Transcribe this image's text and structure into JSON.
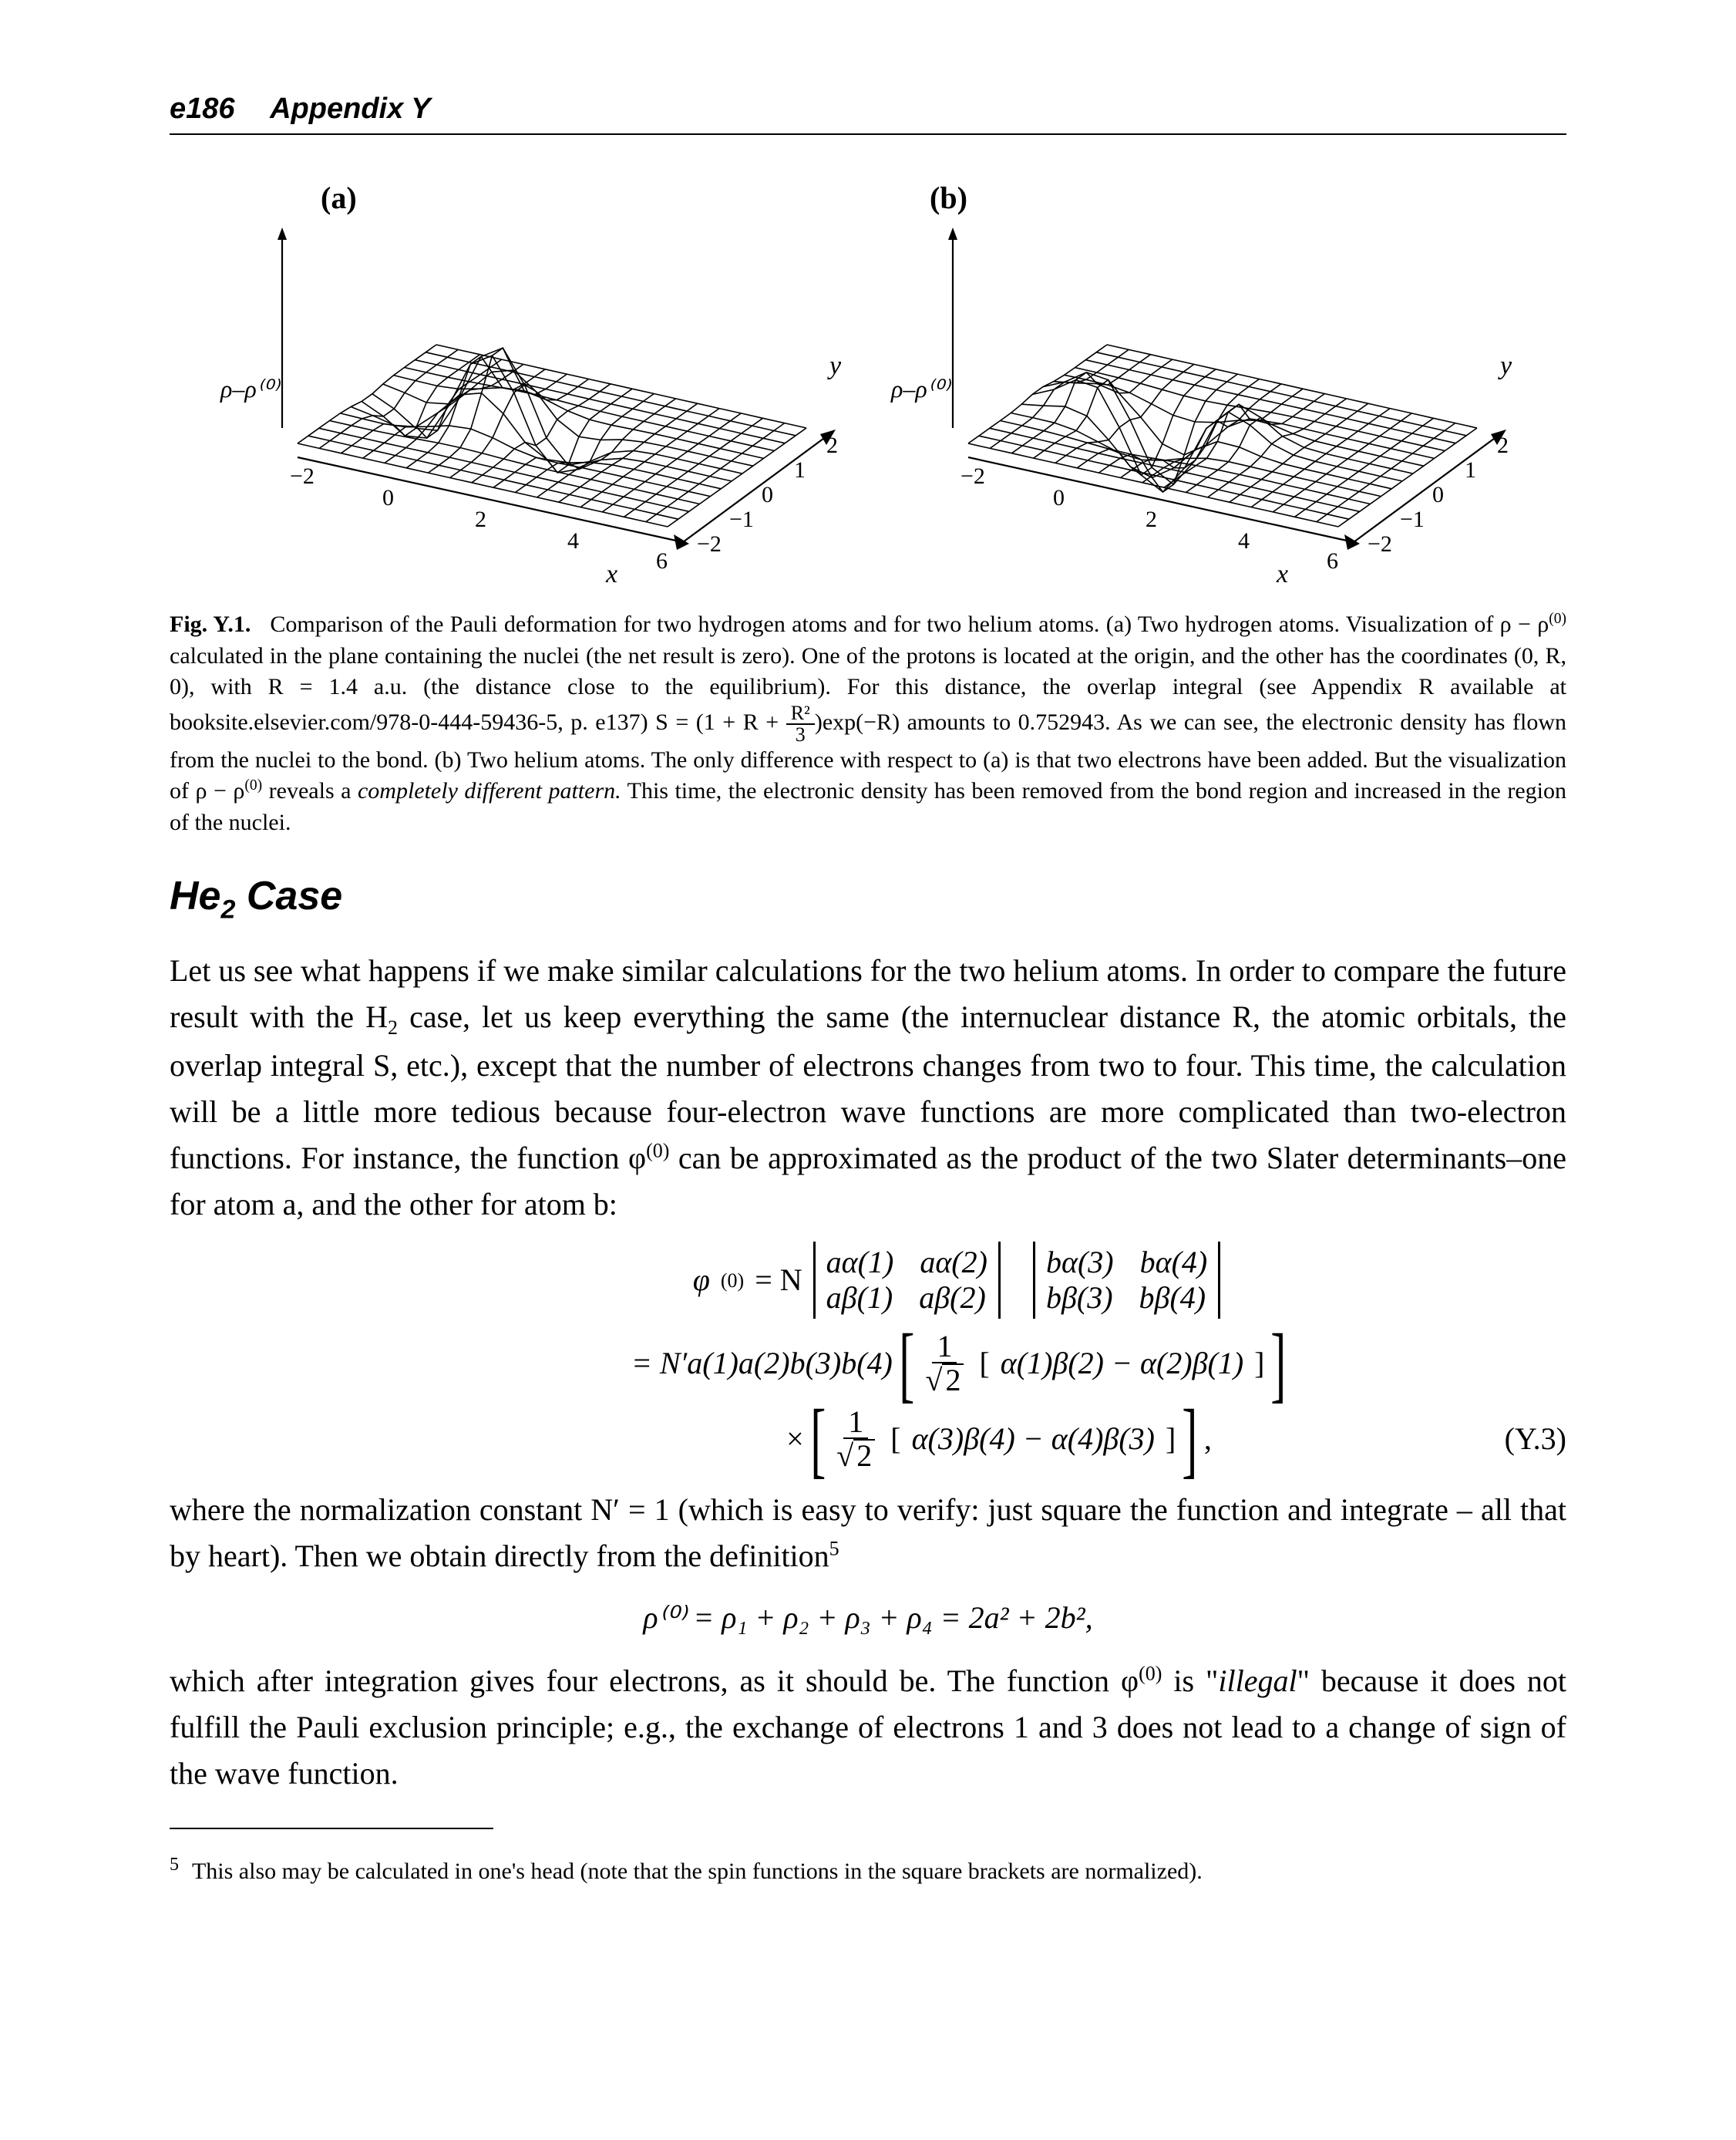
{
  "header": {
    "page_number": "e186",
    "section": "Appendix Y"
  },
  "figure": {
    "panels": {
      "a": {
        "label": "(a)",
        "z_axis_label": "ρ–ρ⁽⁰⁾",
        "x_label": "x",
        "y_label": "y",
        "x_ticks": [
          "−2",
          "0",
          "2",
          "4",
          "6"
        ],
        "y_ticks": [
          "−2",
          "−1",
          "0",
          "1",
          "2"
        ]
      },
      "b": {
        "label": "(b)",
        "z_axis_label": "ρ–ρ⁽⁰⁾",
        "x_label": "x",
        "y_label": "y",
        "x_ticks": [
          "−2",
          "0",
          "2",
          "4",
          "6"
        ],
        "y_ticks": [
          "−2",
          "−1",
          "0",
          "1",
          "2"
        ]
      }
    },
    "caption_label": "Fig. Y.1.",
    "caption_text_1": "Comparison of the Pauli deformation for two hydrogen atoms and for two helium atoms. (a) Two hydrogen atoms. Visualization of ρ − ρ",
    "caption_sup_1": "(0)",
    "caption_text_2": " calculated in the plane containing the nuclei (the net result is zero). One of the protons is located at the origin, and the other has the coordinates (0, R, 0), with R = 1.4 a.u. (the distance close to the equilibrium). For this distance, the overlap integral (see Appendix R available at  booksite.elsevier.com/978-0-444-59436-5, p. e137) S = (1 + R + ",
    "caption_frac_num": "R²",
    "caption_frac_den": "3",
    "caption_text_3": ")exp(−R) amounts to 0.752943. As we can see, the electronic density has flown from the nuclei to the bond. (b) Two helium atoms. The only difference with respect to (a) is that two electrons have been added. But the visualization of ρ − ρ",
    "caption_sup_2": "(0)",
    "caption_text_4": " reveals a ",
    "caption_emph": "completely different pattern.",
    "caption_text_5": " This time, the electronic density has been removed from the bond region and increased in the region of the nuclei."
  },
  "section_title_pre": "He",
  "section_title_sub": "2",
  "section_title_post": " Case",
  "para1_a": "Let us see what happens if we make similar calculations for the two helium atoms. In order to compare the future result with the H",
  "para1_sub": "2",
  "para1_b": " case, let us keep everything the same (the internuclear distance R, the atomic orbitals, the overlap integral S, etc.), except that the number of electrons changes from two to four. This time, the calculation will be a little more tedious because four-electron wave functions are more complicated than two-electron functions. For instance, the function φ",
  "para1_sup": "(0)",
  "para1_c": " can be approximated as the product of the two Slater determinants–one for atom a, and the other for atom b:",
  "equation": {
    "lhs": "φ",
    "lhs_sup": "(0)",
    "eq": " = N ",
    "det1": {
      "r1c1": "aα(1)",
      "r1c2": "aα(2)",
      "r2c1": "aβ(1)",
      "r2c2": "aβ(2)"
    },
    "det2": {
      "r1c1": "bα(3)",
      "r1c2": "bα(4)",
      "r2c1": "bβ(3)",
      "r2c2": "bβ(4)"
    },
    "line2_pre": "= N′a(1)a(2)b(3)b(4)",
    "frac1_num": "1",
    "frac1_den_sqrt": "2",
    "line2_inner": "α(1)β(2) − α(2)β(1)",
    "line3_times": "×",
    "frac2_num": "1",
    "frac2_den_sqrt": "2",
    "line3_inner": "α(3)β(4) − α(4)β(3)",
    "line3_tail": ",",
    "number": "(Y.3)"
  },
  "para2_a": "where the normalization constant N′ = 1 (which is easy to verify: just square the function and integrate – all that by heart). Then we obtain directly from the definition",
  "para2_fn": "5",
  "rho_eq": "ρ⁽⁰⁾ = ρ₁ + ρ₂ + ρ₃ + ρ₄ = 2a² + 2b²,",
  "para3_a": "which after integration gives four electrons, as it should be. The function φ",
  "para3_sup": "(0)",
  "para3_b": " is \"",
  "para3_emph": "illegal",
  "para3_c": "\" because it does not fulfill the Pauli exclusion principle; e.g., the exchange of electrons 1 and 3 does not lead to a change of sign of the wave function.",
  "footnote": {
    "num": "5",
    "text": "This also may be calculated in one's head (note that the spin functions in the square brackets are normalized)."
  },
  "svg_style": {
    "line_color": "#000000",
    "line_width_grid": 1.8,
    "line_width_axis": 2.2,
    "label_font_size": 32,
    "panel_label_font_size": 40,
    "background": "#ffffff"
  }
}
